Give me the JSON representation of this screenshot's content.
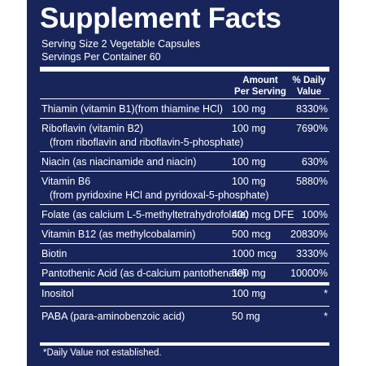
{
  "title": "Supplement Facts",
  "serving_size": "Serving Size 2 Vegetable Capsules",
  "servings_per_container": "Servings Per Container 60",
  "header": {
    "amount_line1": "Amount",
    "amount_line2": "Per Serving",
    "dv_line1": "% Daily",
    "dv_line2": "Value"
  },
  "rows": [
    {
      "name": "Thiamin (vitamin B1)(from thiamine HCl)",
      "sub": "",
      "amount": "100 mg",
      "dv": "8330%"
    },
    {
      "name": "Riboflavin (vitamin B2)",
      "sub": "(from riboflavin and riboflavin-5-phosphate)",
      "amount": "100 mg",
      "dv": "7690%"
    },
    {
      "name": "Niacin (as niacinamide and niacin)",
      "sub": "",
      "amount": "100 mg",
      "dv": "630%"
    },
    {
      "name": "Vitamin B6",
      "sub": "(from pyridoxine HCl and pyridoxal-5-phosphate)",
      "amount": "100 mg",
      "dv": "5880%"
    },
    {
      "name": "Folate (as calcium L-5-methyltetrahydrofolate)",
      "sub": "",
      "amount": "400 mcg DFE",
      "dv": "100%"
    },
    {
      "name": "Vitamin B12 (as methylcobalamin)",
      "sub": "",
      "amount": "500 mcg",
      "dv": "20830%"
    },
    {
      "name": "Biotin",
      "sub": "",
      "amount": "1000 mcg",
      "dv": "3330%"
    },
    {
      "name": "Pantothenic Acid (as d-calcium pantothenate)",
      "sub": "",
      "amount": "500 mg",
      "dv": "10000%"
    },
    {
      "name": "Inositol",
      "sub": "",
      "amount": "100 mg",
      "dv": "*"
    },
    {
      "name": "PABA (para-aminobenzoic acid)",
      "sub": "",
      "amount": "50 mg",
      "dv": "*"
    }
  ],
  "footnote": "*Daily Value not established.",
  "colors": {
    "panel": "#18255a",
    "text": "#ffffff"
  }
}
